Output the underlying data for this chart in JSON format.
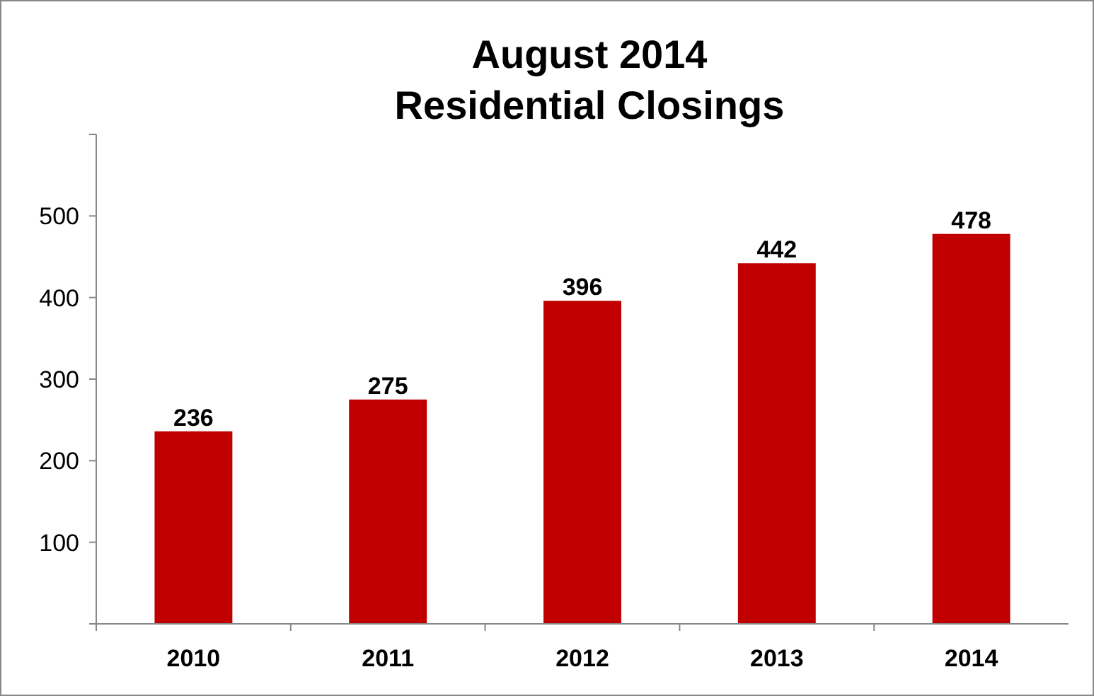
{
  "chart_data": {
    "type": "bar",
    "title": "August 2014\nResidential Closings",
    "categories": [
      "2010",
      "2011",
      "2012",
      "2013",
      "2014"
    ],
    "values": [
      236,
      275,
      396,
      442,
      478
    ],
    "color": "#c00000",
    "ylim": [
      0,
      600
    ],
    "yticks": [
      {
        "value": 0,
        "label": null
      },
      100,
      200,
      300,
      400,
      500,
      {
        "value": 600,
        "label": null
      }
    ],
    "data_labels": true,
    "grid": false
  }
}
